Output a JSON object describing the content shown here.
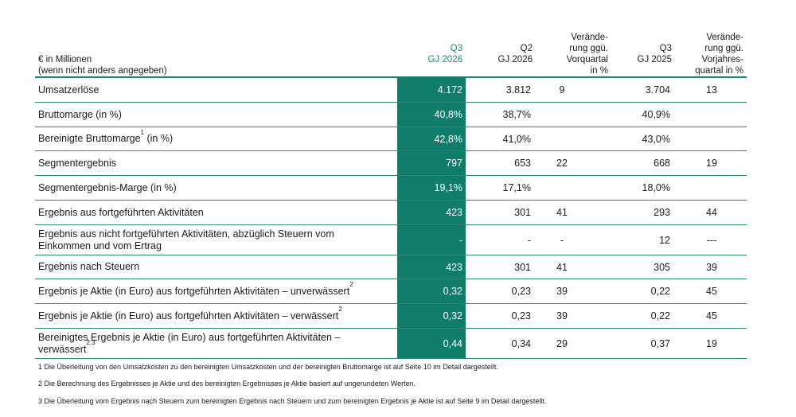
{
  "header": {
    "label_line1": "€ in Millionen",
    "label_line2": "(wenn nicht anders angegeben)",
    "col_q3_cur_l1": "Q3",
    "col_q3_cur_l2": "GJ 2026",
    "col_q2_l1": "Q2",
    "col_q2_l2": "GJ 2026",
    "col_chg_q_l1": "Verände-",
    "col_chg_q_l2": "rung ggü.",
    "col_chg_q_l3": "Vorquartal",
    "col_chg_q_l4": "in %",
    "col_q3_prev_l1": "Q3",
    "col_q3_prev_l2": "GJ 2025",
    "col_chg_y_l1": "Verände-",
    "col_chg_y_l2": "rung ggü.",
    "col_chg_y_l3": "Vorjahres-",
    "col_chg_y_l4": "quartal in %"
  },
  "rows": [
    {
      "label": "Umsatzerlöse",
      "sup": "",
      "q3": "4.172",
      "q2": "3.812",
      "chg_q": "9",
      "q3_prev": "3.704",
      "chg_y": "13"
    },
    {
      "label": "Bruttomarge (in %)",
      "sup": "",
      "q3": "40,8%",
      "q2": "38,7%",
      "chg_q": "",
      "q3_prev": "40,9%",
      "chg_y": ""
    },
    {
      "label": "Bereinigte Bruttomarge",
      "sup": "1",
      "label_suffix": " (in %)",
      "q3": "42,8%",
      "q2": "41,0%",
      "chg_q": "",
      "q3_prev": "43,0%",
      "chg_y": ""
    },
    {
      "label": "Segmentergebnis",
      "sup": "",
      "q3": "797",
      "q2": "653",
      "chg_q": "22",
      "q3_prev": "668",
      "chg_y": "19"
    },
    {
      "label": "Segmentergebnis-Marge (in %)",
      "sup": "",
      "q3": "19,1%",
      "q2": "17,1%",
      "chg_q": "",
      "q3_prev": "18,0%",
      "chg_y": ""
    },
    {
      "label": "Ergebnis aus fortgeführten Aktivitäten",
      "sup": "",
      "q3": "423",
      "q2": "301",
      "chg_q": "41",
      "q3_prev": "293",
      "chg_y": "44"
    },
    {
      "label": "Ergebnis aus nicht fortgeführten Aktivitäten, abzüglich Steuern vom",
      "label_line2": "Einkommen und vom Ertrag",
      "sup": "",
      "q3": "-",
      "q2": "-",
      "chg_q": "-",
      "q3_prev": "12",
      "chg_y": "---"
    },
    {
      "label": "Ergebnis nach Steuern",
      "sup": "",
      "q3": "423",
      "q2": "301",
      "chg_q": "41",
      "q3_prev": "305",
      "chg_y": "39"
    },
    {
      "label": "Ergebnis je Aktie (in Euro) aus fortgeführten Aktivitäten – unverwässert",
      "sup": "2",
      "q3": "0,32",
      "q2": "0,23",
      "chg_q": "39",
      "q3_prev": "0,22",
      "chg_y": "45"
    },
    {
      "label": "Ergebnis je Aktie (in Euro) aus fortgeführten Aktivitäten – verwässert",
      "sup": "2",
      "q3": "0,32",
      "q2": "0,23",
      "chg_q": "39",
      "q3_prev": "0,22",
      "chg_y": "45"
    },
    {
      "label": "Bereinigtes Ergebnis je Aktie (in Euro) aus fortgeführten Aktivitäten –",
      "label_line2": "verwässert",
      "sup2": "2,3",
      "q3": "0,44",
      "q2": "0,34",
      "chg_q": "29",
      "q3_prev": "0,37",
      "chg_y": "19"
    }
  ],
  "footnotes": [
    "1 Die Überleitung von den Umsatzkosten zu den bereinigten Umsatzkosten und der bereinigten Bruttomarge ist auf Seite 10 im Detail dargestellt.",
    "2 Die Berechnung des Ergebnisses je Aktie und des bereinigten Ergebnisses je Aktie basiert auf ungerundeten Werten.",
    "3 Die Überleitung vom Ergebnis nach Steuern zum bereinigten Ergebnis nach Steuern und zum bereinigten Ergebnis je Aktie ist auf Seite 9 im Detail dargestellt."
  ],
  "colors": {
    "accent": "#0f7d6a",
    "rule": "#2b8a77",
    "header_accent": "#1a8a74"
  }
}
